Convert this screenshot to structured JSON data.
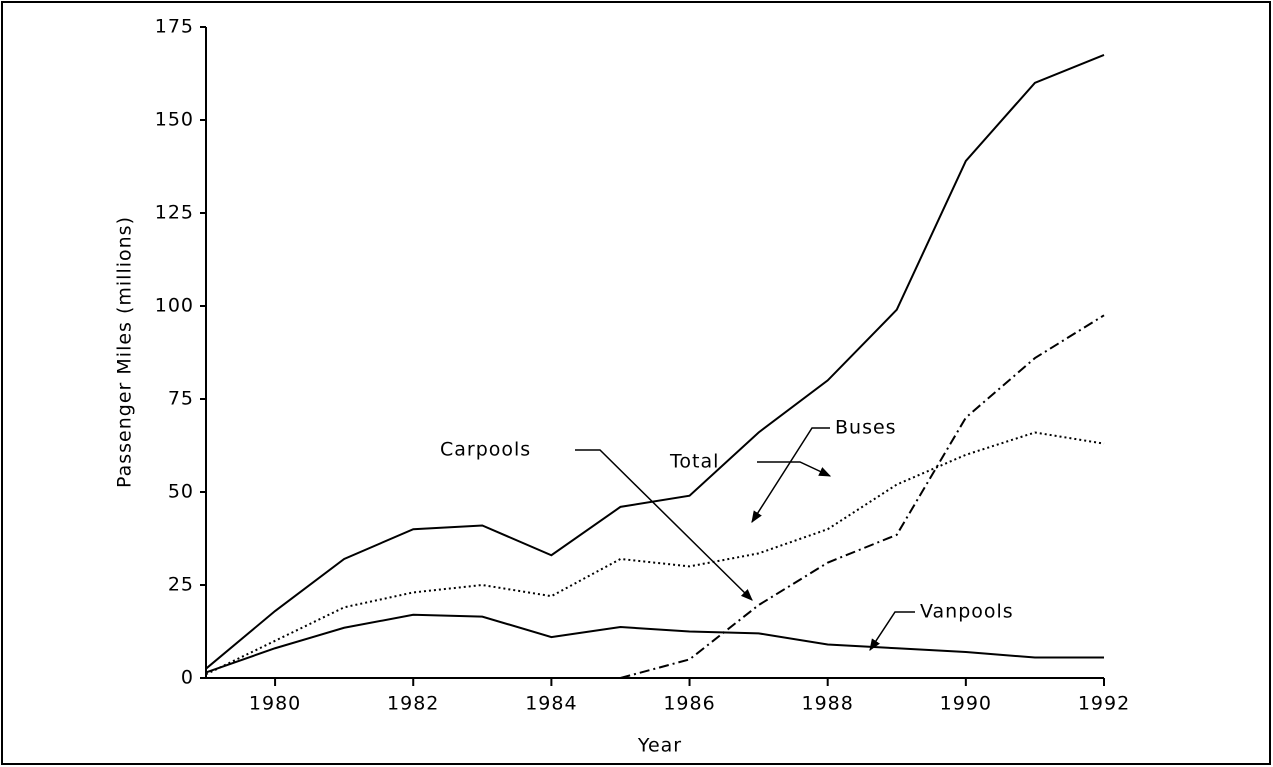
{
  "chart_data": {
    "type": "line",
    "x": [
      1979,
      1980,
      1981,
      1982,
      1983,
      1984,
      1985,
      1986,
      1987,
      1988,
      1989,
      1990,
      1991,
      1992
    ],
    "series": [
      {
        "name": "Total",
        "color": "#000000",
        "style": "solid",
        "values": [
          2.5,
          18,
          32,
          40,
          41,
          33,
          46,
          49,
          66,
          80,
          99,
          139,
          160,
          167.5
        ]
      },
      {
        "name": "Buses",
        "color": "#000000",
        "style": "dotted",
        "values": [
          1,
          10,
          19,
          23,
          25,
          22,
          32,
          30,
          33.5,
          40,
          52,
          60,
          66,
          63
        ]
      },
      {
        "name": "Carpools",
        "color": "#000000",
        "style": "dashdot",
        "values": [
          null,
          null,
          null,
          null,
          null,
          null,
          0,
          5,
          19.6,
          31,
          38.5,
          70,
          86,
          97.5
        ]
      },
      {
        "name": "Vanpools",
        "color": "#000000",
        "style": "solid",
        "values": [
          1.5,
          8,
          13.5,
          17,
          16.5,
          11,
          13.7,
          12.5,
          12,
          9,
          8,
          7,
          5.5,
          5.5
        ]
      }
    ],
    "xlabel": "Year",
    "ylabel": "Passenger Miles (millions)",
    "xlim": [
      1979,
      1992
    ],
    "xticks": [
      1980,
      1982,
      1984,
      1986,
      1988,
      1990,
      1992
    ],
    "ylim": [
      0,
      175
    ],
    "yticks": [
      0,
      25,
      50,
      75,
      100,
      125,
      150,
      175
    ],
    "grid": false,
    "legend": "annotations"
  }
}
